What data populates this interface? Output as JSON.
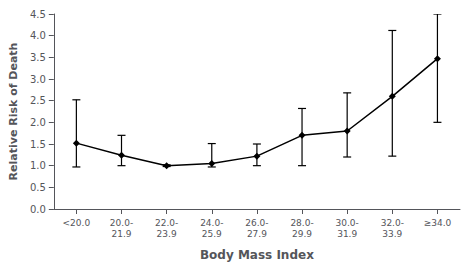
{
  "chart_data": {
    "type": "line",
    "xlabel": "Body Mass Index",
    "ylabel": "Relative Risk of Death",
    "categories": [
      "<20.0",
      "20.0-\n21.9",
      "22.0-\n23.9",
      "24.0-\n25.9",
      "26.0-\n27.9",
      "28.0-\n29.9",
      "30.0-\n31.9",
      "32.0-\n33.9",
      "≥34.0"
    ],
    "values": [
      1.52,
      1.24,
      1.0,
      1.05,
      1.22,
      1.7,
      1.8,
      2.6,
      3.47
    ],
    "err_low": [
      0.55,
      0.24,
      0.02,
      0.08,
      0.22,
      0.7,
      0.6,
      1.38,
      1.47
    ],
    "err_high": [
      1.0,
      0.46,
      0.02,
      0.46,
      0.28,
      0.62,
      0.88,
      1.52,
      1.03
    ],
    "color": "black",
    "marker": "diamond",
    "line_style": "solid",
    "ylim": [
      0.0,
      4.5
    ],
    "yticks": [
      {
        "value": 0.0,
        "label": "0.0"
      },
      0.5,
      {
        "value": 1.0,
        "label": "1.0"
      },
      1.5,
      {
        "value": 2.0,
        "label": "2.0"
      },
      2.5,
      {
        "value": 3.0,
        "label": "3.0"
      },
      3.5,
      {
        "value": 4.0,
        "label": "4.0"
      },
      4.5
    ],
    "grid": false
  }
}
